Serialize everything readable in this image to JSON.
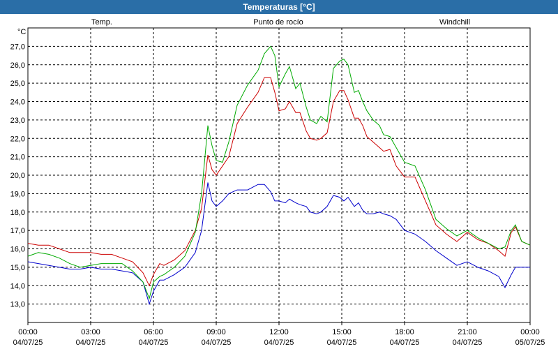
{
  "window": {
    "title": "Temperaturas [°C]"
  },
  "chart_data": {
    "type": "line",
    "title": "Temperaturas [°C]",
    "ylabel": "°C",
    "ylim": [
      12.0,
      28.0
    ],
    "yticks": [
      "13,0",
      "14,0",
      "15,0",
      "16,0",
      "17,0",
      "18,0",
      "19,0",
      "20,0",
      "21,0",
      "22,0",
      "23,0",
      "24,0",
      "25,0",
      "26,0",
      "27,0"
    ],
    "xlim": [
      0,
      24
    ],
    "xticks": [
      {
        "time": "00:00",
        "date": "04/07/25"
      },
      {
        "time": "03:00",
        "date": "04/07/25"
      },
      {
        "time": "06:00",
        "date": "04/07/25"
      },
      {
        "time": "09:00",
        "date": "04/07/25"
      },
      {
        "time": "12:00",
        "date": "04/07/25"
      },
      {
        "time": "15:00",
        "date": "04/07/25"
      },
      {
        "time": "18:00",
        "date": "04/07/25"
      },
      {
        "time": "21:00",
        "date": "04/07/25"
      },
      {
        "time": "00:00",
        "date": "05/07/25"
      }
    ],
    "grid": true,
    "series": [
      {
        "name": "Temp.",
        "color": "#cc0000",
        "x": [
          0,
          0.5,
          1,
          1.5,
          2,
          2.5,
          3,
          3.5,
          4,
          4.5,
          5,
          5.5,
          5.8,
          6,
          6.3,
          6.5,
          7,
          7.5,
          8,
          8.3,
          8.6,
          8.8,
          9,
          9.3,
          9.6,
          10,
          10.5,
          11,
          11.3,
          11.6,
          11.8,
          12,
          12.3,
          12.5,
          12.8,
          13,
          13.3,
          13.5,
          13.8,
          14,
          14.3,
          14.6,
          14.9,
          15.1,
          15.3,
          15.6,
          15.8,
          16,
          16.2,
          16.5,
          16.8,
          17,
          17.3,
          17.6,
          18,
          18.5,
          19,
          19.5,
          20,
          20.5,
          21,
          21.5,
          22,
          22.5,
          22.8,
          23.1,
          23.3,
          23.6,
          24
        ],
        "y": [
          16.3,
          16.2,
          16.2,
          16.0,
          15.8,
          15.8,
          15.8,
          15.7,
          15.7,
          15.5,
          15.3,
          14.7,
          14.0,
          14.6,
          15.2,
          15.1,
          15.4,
          15.9,
          17.0,
          18.2,
          21.1,
          20.3,
          20.0,
          20.5,
          21.0,
          22.8,
          23.7,
          24.5,
          25.3,
          25.3,
          24.5,
          23.5,
          23.6,
          24.0,
          23.4,
          23.4,
          22.4,
          22.0,
          21.9,
          22.0,
          22.3,
          24.0,
          24.6,
          24.6,
          24.1,
          23.1,
          23.1,
          22.7,
          22.1,
          21.8,
          21.5,
          21.3,
          21.4,
          20.5,
          19.9,
          19.9,
          18.6,
          17.3,
          16.8,
          16.4,
          16.9,
          16.5,
          16.3,
          15.9,
          15.6,
          16.9,
          17.2,
          16.4,
          16.2
        ]
      },
      {
        "name": "Punto de rocío",
        "color": "#0000cc",
        "x": [
          0,
          0.5,
          1,
          1.5,
          2,
          2.5,
          3,
          3.5,
          4,
          4.5,
          5,
          5.5,
          5.8,
          6,
          6.3,
          6.5,
          7,
          7.5,
          8,
          8.3,
          8.6,
          8.8,
          9,
          9.3,
          9.6,
          10,
          10.5,
          11,
          11.3,
          11.6,
          11.8,
          12,
          12.3,
          12.5,
          12.8,
          13,
          13.3,
          13.5,
          13.8,
          14,
          14.3,
          14.6,
          14.9,
          15.1,
          15.3,
          15.6,
          15.8,
          16,
          16.2,
          16.5,
          16.8,
          17,
          17.3,
          17.6,
          18,
          18.5,
          19,
          19.5,
          20,
          20.5,
          21,
          21.5,
          22,
          22.5,
          22.8,
          23.1,
          23.3,
          23.6,
          24
        ],
        "y": [
          15.3,
          15.2,
          15.1,
          15.0,
          14.9,
          14.9,
          15.0,
          14.9,
          14.9,
          14.8,
          14.7,
          14.2,
          13.0,
          13.7,
          14.3,
          14.3,
          14.6,
          15.0,
          15.8,
          17.0,
          19.6,
          18.6,
          18.3,
          18.6,
          19.0,
          19.2,
          19.2,
          19.5,
          19.5,
          19.1,
          18.6,
          18.6,
          18.5,
          18.7,
          18.5,
          18.4,
          18.3,
          18.0,
          17.9,
          18.0,
          18.3,
          18.9,
          18.8,
          18.6,
          18.8,
          18.3,
          18.5,
          18.1,
          17.9,
          17.9,
          18.0,
          17.9,
          17.8,
          17.6,
          17.0,
          16.8,
          16.4,
          15.9,
          15.5,
          15.1,
          15.3,
          15.0,
          14.8,
          14.5,
          13.9,
          14.6,
          15.0,
          15.0,
          15.0
        ]
      },
      {
        "name": "Windchill",
        "color": "#00aa00",
        "x": [
          0,
          0.5,
          1,
          1.5,
          2,
          2.5,
          3,
          3.5,
          4,
          4.5,
          5,
          5.5,
          5.8,
          6,
          6.3,
          6.5,
          7,
          7.5,
          8,
          8.3,
          8.6,
          8.8,
          9,
          9.3,
          9.6,
          10,
          10.5,
          11,
          11.3,
          11.6,
          11.8,
          12,
          12.3,
          12.5,
          12.8,
          13,
          13.3,
          13.5,
          13.8,
          14,
          14.3,
          14.6,
          14.9,
          15.1,
          15.3,
          15.6,
          15.8,
          16,
          16.2,
          16.5,
          16.8,
          17,
          17.3,
          17.6,
          18,
          18.5,
          19,
          19.5,
          20,
          20.5,
          21,
          21.5,
          22,
          22.5,
          22.8,
          23.1,
          23.3,
          23.6,
          24
        ],
        "y": [
          15.6,
          15.8,
          15.7,
          15.5,
          15.2,
          15.0,
          15.1,
          15.2,
          15.2,
          15.2,
          14.8,
          14.2,
          13.3,
          14.2,
          14.5,
          14.6,
          15.0,
          15.6,
          16.9,
          19.0,
          22.7,
          21.6,
          20.8,
          20.7,
          21.8,
          23.8,
          24.9,
          25.7,
          26.6,
          27.0,
          26.5,
          24.8,
          25.5,
          25.9,
          24.7,
          25.0,
          23.7,
          23.0,
          22.8,
          23.2,
          22.9,
          25.8,
          26.2,
          26.3,
          26.0,
          24.5,
          24.6,
          24.0,
          23.5,
          23.0,
          22.7,
          22.2,
          22.1,
          21.5,
          20.7,
          20.5,
          19.2,
          17.6,
          17.1,
          16.7,
          17.0,
          16.6,
          16.3,
          16.0,
          16.1,
          17.0,
          17.3,
          16.4,
          16.2
        ]
      }
    ]
  }
}
